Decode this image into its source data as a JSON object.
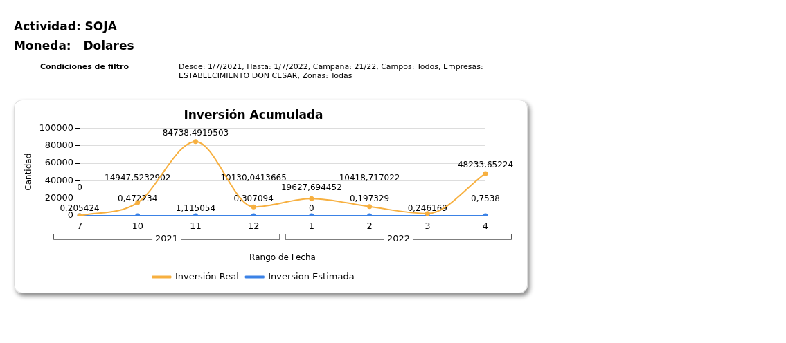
{
  "chart_data": {
    "type": "line",
    "title": "Inversión Acumulada",
    "xlabel": "Rango de Fecha",
    "ylabel": "Cantidad",
    "categories": [
      "7",
      "10",
      "11",
      "12",
      "1",
      "2",
      "3",
      "4"
    ],
    "series": [
      {
        "name": "Inversion Estimada",
        "color": "#3b82e6",
        "values": [
          0.205424,
          0.472234,
          1.115054,
          0.307094,
          0,
          0.197329,
          0.246169,
          0.7538
        ],
        "value_labels": [
          "0,205424",
          "0,472234",
          "1,115054",
          "0,307094",
          "0",
          "0,197329",
          "0,246169",
          "0,7538"
        ]
      },
      {
        "name": "Inversión Real",
        "color": "#f7b040",
        "values": [
          0,
          14947.5232902,
          84738.4919503,
          10130.0413665,
          19627.694452,
          10418.717022,
          2500,
          48233.65224
        ],
        "value_labels": [
          "0",
          "14947,5232902",
          "84738,4919503",
          "10130,0413665",
          "19627,694452",
          "10418,717022",
          null,
          "48233,65224"
        ]
      }
    ],
    "ylim": [
      0,
      100000
    ],
    "yticks": [
      0,
      20000,
      40000,
      60000,
      80000,
      100000
    ],
    "grid": "y",
    "legend": "bottom",
    "marker": "circle",
    "line_style": "solid",
    "annotations": [
      "Actividad: SOJA",
      "Moneda:   Dolares",
      "Condiciones de filtro",
      "Desde: 1/7/2021, Hasta: 1/7/2022, Campaña: 21/22, Campos: Todos, Empresas: ESTABLECIMIENTO DON CESAR, Zonas: Todas",
      "2021",
      "2022"
    ]
  }
}
